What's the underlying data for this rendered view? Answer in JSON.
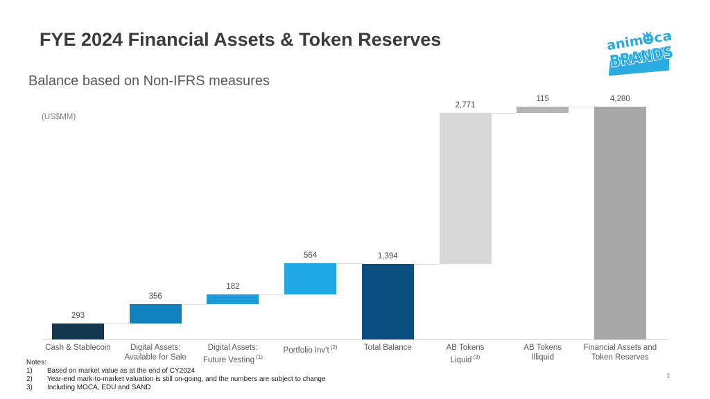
{
  "slide": {
    "title": "FYE 2024 Financial Assets & Token Reserves",
    "subtitle": "Balance based on Non-IFRS measures",
    "units_label": "(US$MM)",
    "page_number": "1"
  },
  "logo": {
    "word_top": "anim",
    "word_top_tail": "ca",
    "word_bottom": "BRANDS",
    "brand_color": "#29ABE2"
  },
  "notes": {
    "heading": "Notes:",
    "items": [
      {
        "num": "1)",
        "text": "Based on market value as at the end of CY2024"
      },
      {
        "num": "2)",
        "text": "Year-end mark-to-market valuation is still on-going, and the numbers are subject to change"
      },
      {
        "num": "3)",
        "text": "Including MOCA, EDU and SAND"
      }
    ]
  },
  "chart_data": {
    "type": "bar",
    "subtype": "waterfall",
    "title": "FYE 2024 Financial Assets & Token Reserves",
    "units": "US$MM",
    "ylim": [
      0,
      4280
    ],
    "grid": false,
    "legend": "none",
    "connector_color": "#e0e0e0",
    "axis_color": "#d9d9d9",
    "bars": [
      {
        "category_lines": [
          "Cash & Stablecoin"
        ],
        "footnote": "",
        "value": 293,
        "label": "293",
        "start": 0,
        "color": "#14384F"
      },
      {
        "category_lines": [
          "Digital Assets:",
          "Available for Sale"
        ],
        "footnote": "",
        "value": 356,
        "label": "356",
        "start": 293,
        "color": "#1380BE"
      },
      {
        "category_lines": [
          "Digital Assets:",
          "Future Vesting"
        ],
        "footnote": "(1)",
        "value": 182,
        "label": "182",
        "start": 649,
        "color": "#1E9CD7"
      },
      {
        "category_lines": [
          "Portfolio Inv't"
        ],
        "footnote": "(2)",
        "value": 564,
        "label": "564",
        "start": 831,
        "color": "#1FA8E4"
      },
      {
        "category_lines": [
          "Total Balance"
        ],
        "footnote": "",
        "value": 1394,
        "label": "1,394",
        "start": 0,
        "color": "#0A4E82"
      },
      {
        "category_lines": [
          "AB Tokens",
          "Liquid"
        ],
        "footnote": "(3)",
        "value": 2771,
        "label": "2,771",
        "start": 1394,
        "color": "#D9D9D9"
      },
      {
        "category_lines": [
          "AB Tokens",
          "Illiquid"
        ],
        "footnote": "",
        "value": 115,
        "label": "115",
        "start": 4165,
        "color": "#B5B5B5"
      },
      {
        "category_lines": [
          "Financial Assets and",
          "Token Reserves"
        ],
        "footnote": "",
        "value": 4280,
        "label": "4,280",
        "start": 0,
        "color": "#A8A8A8"
      }
    ]
  }
}
